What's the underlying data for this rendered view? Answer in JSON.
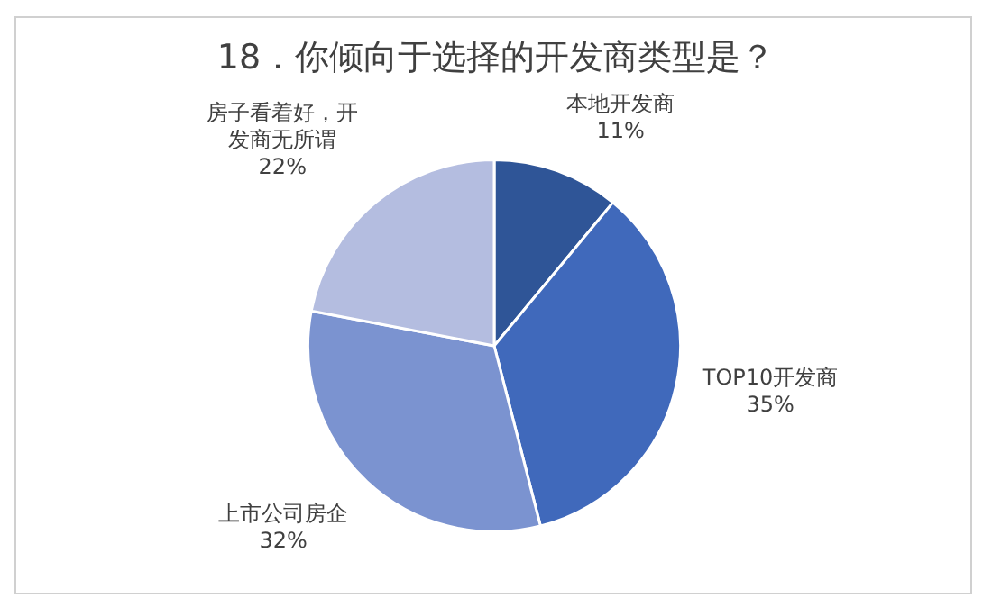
{
  "chart_data": {
    "type": "pie",
    "title": "18．你倾向于选择的开发商类型是？",
    "categories": [
      "本地开发商",
      "TOP10开发商",
      "上市公司房企",
      "房子看着好，开发商无所谓"
    ],
    "values": [
      11,
      35,
      32,
      22
    ],
    "colors": [
      "#2f5597",
      "#4069bb",
      "#7b93d0",
      "#b4bde0"
    ],
    "value_labels": [
      "11%",
      "35%",
      "32%",
      "22%"
    ],
    "legend": false
  }
}
